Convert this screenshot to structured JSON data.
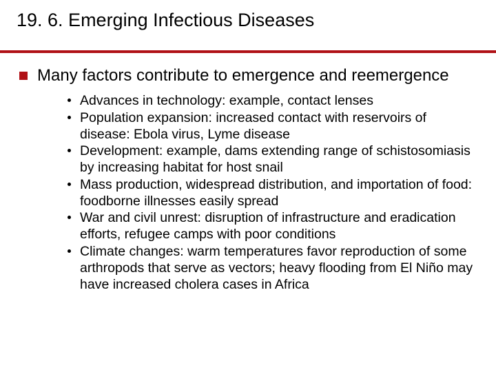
{
  "colors": {
    "rule": "#b01116",
    "l1_bullet": "#b01116",
    "l2_bullet": "#000000",
    "text": "#000000",
    "background": "#ffffff"
  },
  "title": "19. 6. Emerging Infectious Diseases",
  "level1": {
    "text": "Many factors contribute to emergence and reemergence"
  },
  "level2": [
    {
      "text": "Advances in technology: example, contact lenses"
    },
    {
      "text": "Population expansion: increased contact with reservoirs of disease: Ebola virus, Lyme disease"
    },
    {
      "text": "Development: example, dams extending range of schistosomiasis by increasing habitat for host snail"
    },
    {
      "text": "Mass production, widespread distribution, and importation of food: foodborne illnesses easily spread"
    },
    {
      "text": "War and civil unrest: disruption of infrastructure and eradication efforts, refugee camps with poor conditions"
    },
    {
      "text": "Climate changes: warm temperatures favor reproduction of some arthropods that serve as vectors; heavy flooding from El Niño may have increased cholera cases in Africa"
    }
  ]
}
